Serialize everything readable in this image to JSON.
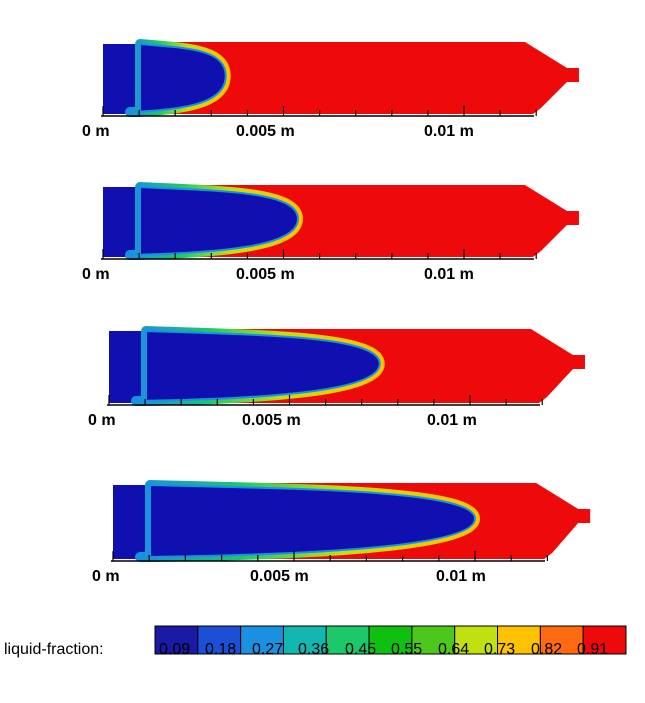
{
  "colorbar": {
    "title": "liquid-fraction:",
    "values": [
      "0.09",
      "0.18",
      "0.27",
      "0.36",
      "0.45",
      "0.55",
      "0.64",
      "0.73",
      "0.82",
      "0.91"
    ],
    "colors": [
      "#1a1aa6",
      "#1c4fd6",
      "#1a90e0",
      "#12b8b0",
      "#1cc86a",
      "#10c010",
      "#4cc81c",
      "#c0e010",
      "#ffc200",
      "#ff6a10",
      "#ee0a0a"
    ]
  },
  "solid_color": "#1010b0",
  "liquid_color": "#ee0a0a",
  "axis_labels": [
    "0 m",
    "0.005 m",
    "0.01 m"
  ],
  "snapshots": [
    {
      "id": "snapshot-1",
      "front_position_m": 0.0034
    },
    {
      "id": "snapshot-2",
      "front_position_m": 0.0054
    },
    {
      "id": "snapshot-3",
      "front_position_m": 0.0075
    },
    {
      "id": "snapshot-4",
      "front_position_m": 0.01
    }
  ]
}
